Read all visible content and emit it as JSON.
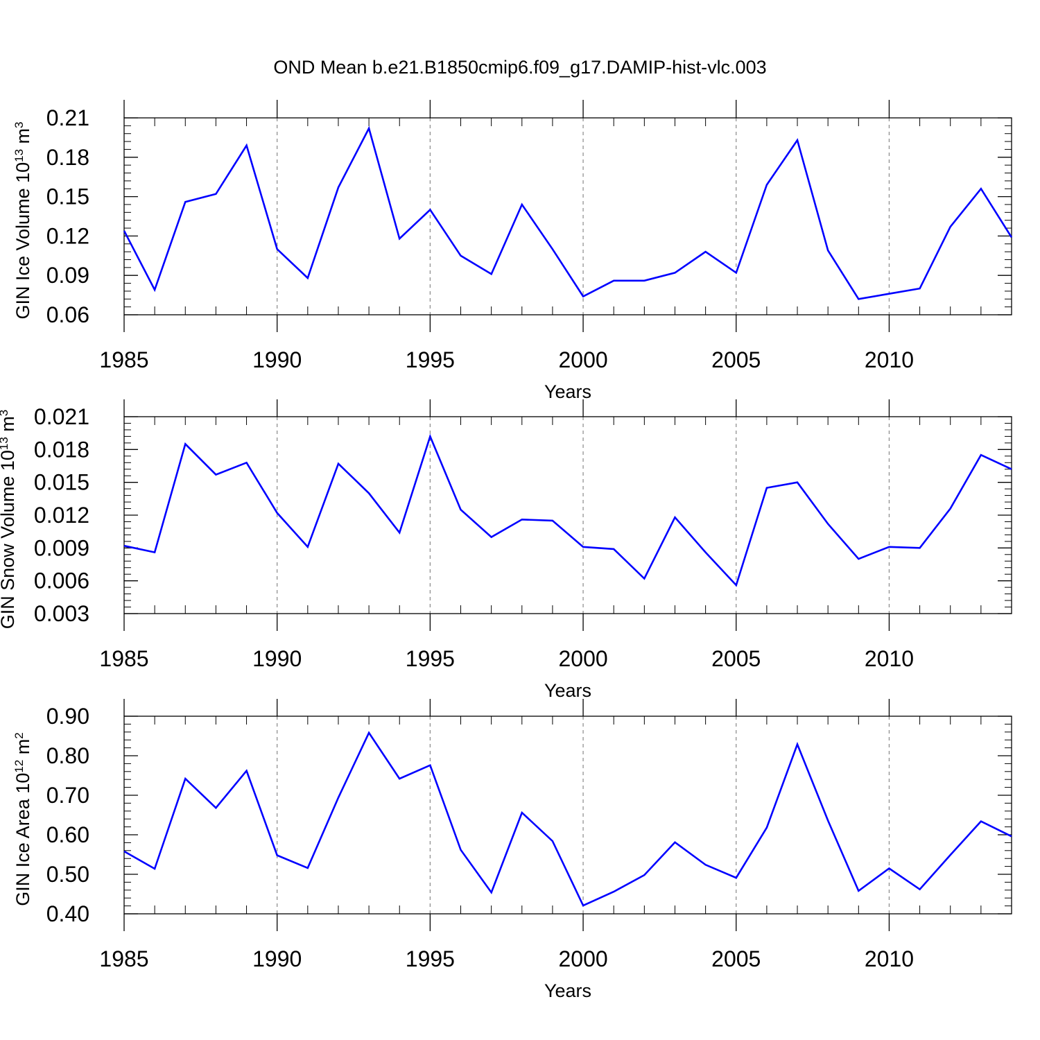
{
  "figure_title": "OND Mean b.e21.B1850cmip6.f09_g17.DAMIP-hist-vlc.003",
  "line_color": "#0000ff",
  "chart_data": [
    {
      "type": "line",
      "title": "OND Mean b.e21.B1850cmip6.f09_g17.DAMIP-hist-vlc.003",
      "xlabel": "Years",
      "ylabel": {
        "main": "GIN Ice Volume 10",
        "exp": "13",
        "unit": " m",
        "unit_exp": "3"
      },
      "x": [
        1985,
        1986,
        1987,
        1988,
        1989,
        1990,
        1991,
        1992,
        1993,
        1994,
        1995,
        1996,
        1997,
        1998,
        1999,
        2000,
        2001,
        2002,
        2003,
        2004,
        2005,
        2006,
        2007,
        2008,
        2009,
        2010,
        2011,
        2012,
        2013,
        2014
      ],
      "values": [
        0.124,
        0.079,
        0.146,
        0.152,
        0.189,
        0.11,
        0.088,
        0.157,
        0.202,
        0.118,
        0.14,
        0.105,
        0.091,
        0.144,
        0.11,
        0.074,
        0.086,
        0.086,
        0.092,
        0.108,
        0.092,
        0.159,
        0.193,
        0.109,
        0.072,
        0.076,
        0.08,
        0.127,
        0.156,
        0.119
      ],
      "xlim": [
        1985,
        2014
      ],
      "ylim": [
        0.06,
        0.21
      ],
      "xticks": [
        1985,
        1990,
        1995,
        2000,
        2005,
        2010
      ],
      "xtick_labels": [
        "1985",
        "1990",
        "1995",
        "2000",
        "2005",
        "2010"
      ],
      "yticks": [
        0.06,
        0.09,
        0.12,
        0.15,
        0.18,
        0.21
      ],
      "ytick_labels": [
        "0.06",
        "0.09",
        "0.12",
        "0.15",
        "0.18",
        "0.21"
      ],
      "grid": "vertical dashed at labeled years"
    },
    {
      "type": "line",
      "xlabel": "Years",
      "ylabel": {
        "main": "GIN Snow Volume 10",
        "exp": "13",
        "unit": " m",
        "unit_exp": "3"
      },
      "x": [
        1985,
        1986,
        1987,
        1988,
        1989,
        1990,
        1991,
        1992,
        1993,
        1994,
        1995,
        1996,
        1997,
        1998,
        1999,
        2000,
        2001,
        2002,
        2003,
        2004,
        2005,
        2006,
        2007,
        2008,
        2009,
        2010,
        2011,
        2012,
        2013,
        2014
      ],
      "values": [
        0.0092,
        0.0086,
        0.0185,
        0.0157,
        0.0168,
        0.0122,
        0.0091,
        0.0167,
        0.014,
        0.0104,
        0.0192,
        0.0125,
        0.01,
        0.0116,
        0.0115,
        0.0091,
        0.0089,
        0.0062,
        0.0118,
        0.0086,
        0.0056,
        0.0145,
        0.015,
        0.0112,
        0.008,
        0.0091,
        0.009,
        0.0126,
        0.0175,
        0.0162
      ],
      "xlim": [
        1985,
        2014
      ],
      "ylim": [
        0.003,
        0.021
      ],
      "xticks": [
        1985,
        1990,
        1995,
        2000,
        2005,
        2010
      ],
      "xtick_labels": [
        "1985",
        "1990",
        "1995",
        "2000",
        "2005",
        "2010"
      ],
      "yticks": [
        0.003,
        0.006,
        0.009,
        0.012,
        0.015,
        0.018,
        0.021
      ],
      "ytick_labels": [
        "0.003",
        "0.006",
        "0.009",
        "0.012",
        "0.015",
        "0.018",
        "0.021"
      ],
      "grid": "vertical dashed at labeled years"
    },
    {
      "type": "line",
      "xlabel": "Years",
      "ylabel": {
        "main": "GIN Ice Area 10",
        "exp": "12",
        "unit": " m",
        "unit_exp": "2"
      },
      "x": [
        1985,
        1986,
        1987,
        1988,
        1989,
        1990,
        1991,
        1992,
        1993,
        1994,
        1995,
        1996,
        1997,
        1998,
        1999,
        2000,
        2001,
        2002,
        2003,
        2004,
        2005,
        2006,
        2007,
        2008,
        2009,
        2010,
        2011,
        2012,
        2013,
        2014
      ],
      "values": [
        0.558,
        0.514,
        0.742,
        0.668,
        0.762,
        0.548,
        0.516,
        0.694,
        0.858,
        0.742,
        0.776,
        0.562,
        0.454,
        0.656,
        0.584,
        0.421,
        0.456,
        0.498,
        0.581,
        0.524,
        0.491,
        0.618,
        0.829,
        0.636,
        0.458,
        0.515,
        0.462,
        0.549,
        0.634,
        0.596
      ],
      "xlim": [
        1985,
        2014
      ],
      "ylim": [
        0.4,
        0.9
      ],
      "xticks": [
        1985,
        1990,
        1995,
        2000,
        2005,
        2010
      ],
      "xtick_labels": [
        "1985",
        "1990",
        "1995",
        "2000",
        "2005",
        "2010"
      ],
      "yticks": [
        0.4,
        0.5,
        0.6,
        0.7,
        0.8,
        0.9
      ],
      "ytick_labels": [
        "0.40",
        "0.50",
        "0.60",
        "0.70",
        "0.80",
        "0.90"
      ],
      "grid": "vertical dashed at labeled years"
    }
  ]
}
